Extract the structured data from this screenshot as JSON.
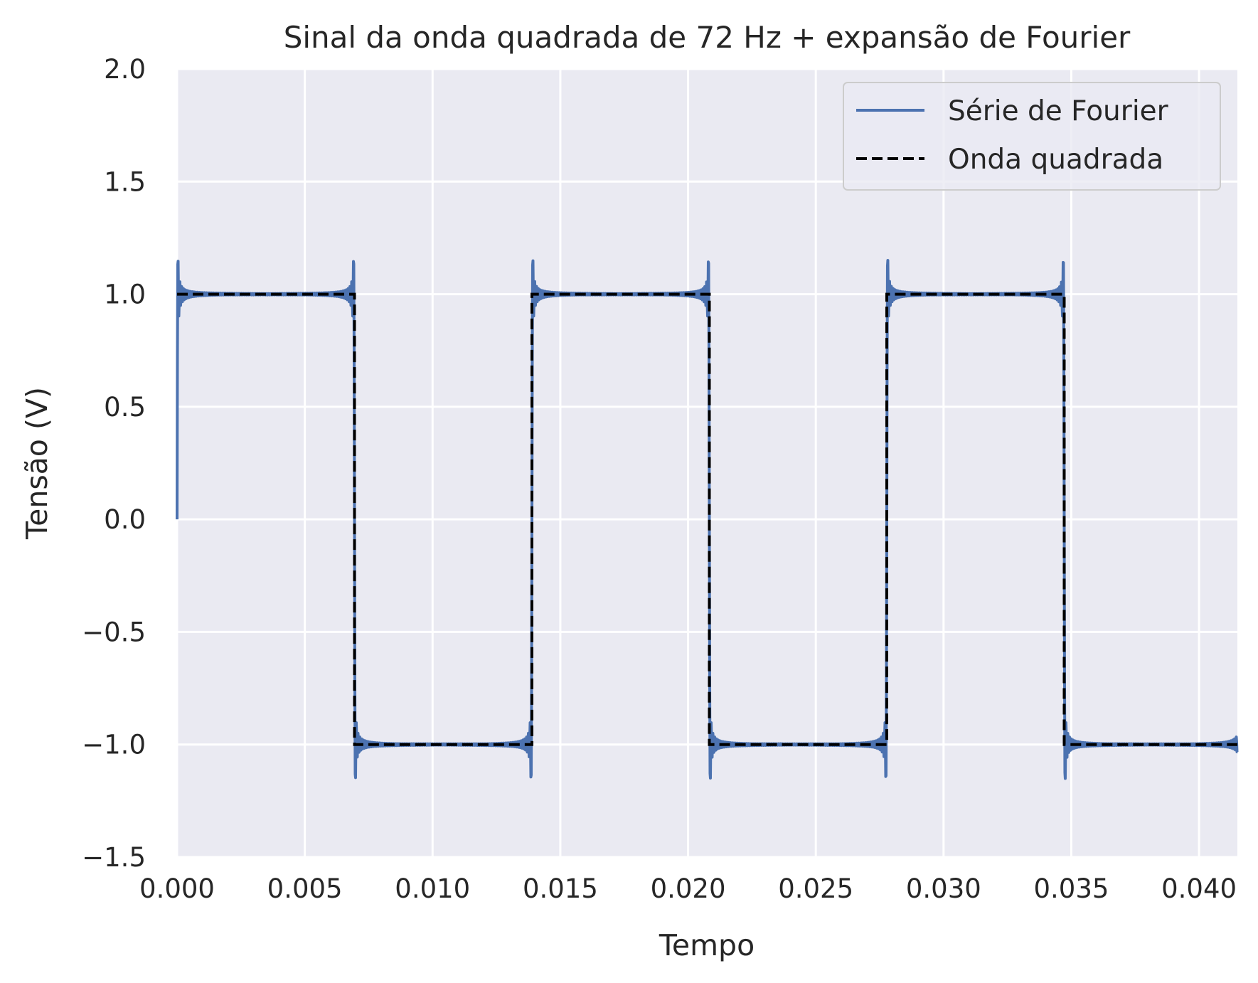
{
  "chart_data": {
    "type": "line",
    "title": "Sinal da onda quadrada de 72 Hz + expansão de Fourier",
    "xlabel": "Tempo",
    "ylabel": "Tensão (V)",
    "xlim": [
      0,
      0.0415
    ],
    "ylim": [
      -1.5,
      2.0
    ],
    "xticks": [
      0.0,
      0.005,
      0.01,
      0.015,
      0.02,
      0.025,
      0.03,
      0.035,
      0.04
    ],
    "xtick_labels": [
      "0.000",
      "0.005",
      "0.010",
      "0.015",
      "0.020",
      "0.025",
      "0.030",
      "0.035",
      "0.040"
    ],
    "yticks": [
      -1.5,
      -1.0,
      -0.5,
      0.0,
      0.5,
      1.0,
      1.5,
      2.0
    ],
    "ytick_labels": [
      "−1.5",
      "−1.0",
      "−0.5",
      "0.0",
      "0.5",
      "1.0",
      "1.5",
      "2.0"
    ],
    "grid": true,
    "legend_position": "top-right",
    "frequency_hz": 72,
    "series": [
      {
        "name": "Série de Fourier",
        "style": "solid",
        "color": "#4c72b0",
        "kind": "fourier-square",
        "amplitude": 1.0,
        "harmonics": 199
      },
      {
        "name": "Onda quadrada",
        "style": "dashed",
        "color": "#000000",
        "kind": "square",
        "amplitude": 1.0
      }
    ],
    "colors": {
      "plot_background": "#eaeaf2",
      "grid": "#ffffff",
      "text": "#262626"
    }
  }
}
